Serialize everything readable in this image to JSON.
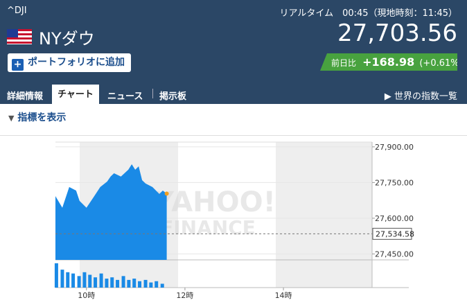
{
  "header": {
    "symbol": "^DJI",
    "name": "NYダウ",
    "realtime": "リアルタイム　00:45（現地時刻：11:45）",
    "price": "27,703.56",
    "add_button": "ポートフォリオに追加",
    "change_label": "前日比",
    "change": "+168.98",
    "change_pct": "(+0.61%)"
  },
  "tabs": [
    "詳細情報",
    "チャート",
    "ニュース",
    "掲示板"
  ],
  "world_link": "世界の指数一覧",
  "indicator_toggle": "指標を表示",
  "chart_data": {
    "type": "area",
    "watermark": [
      "YAHOO!",
      "FINANCE"
    ],
    "x": [
      9.37,
      9.51,
      9.65,
      9.79,
      9.86,
      10.0,
      10.14,
      10.28,
      10.42,
      10.49,
      10.56,
      10.7,
      10.85,
      10.92,
      10.99,
      11.06,
      11.13,
      11.2,
      11.34,
      11.48,
      11.55,
      11.63
    ],
    "values": [
      27693,
      27644,
      27731,
      27716,
      27673,
      27644,
      27687,
      27731,
      27754,
      27775,
      27789,
      27775,
      27804,
      27827,
      27804,
      27818,
      27760,
      27746,
      27731,
      27702,
      27716,
      27703.56
    ],
    "color": "#1a8ae6",
    "last_point_color": "#f0a020",
    "prev_close": {
      "value": 27534.58,
      "label": "27,534.58"
    },
    "xlim": [
      9.37,
      15.8
    ],
    "ylim": [
      27425,
      27920
    ],
    "xticks": [
      {
        "value": 10,
        "label": "10時"
      },
      {
        "value": 12,
        "label": "12時"
      },
      {
        "value": 14,
        "label": "14時"
      }
    ],
    "yticks": [
      {
        "value": 27900,
        "label": "27,900.00"
      },
      {
        "value": 27750,
        "label": "27,750.00"
      },
      {
        "value": 27600,
        "label": "27,600.00"
      },
      {
        "value": 27450,
        "label": "27,450.00"
      }
    ],
    "grid": true,
    "volume": {
      "x": [
        9.39,
        9.51,
        9.62,
        9.73,
        9.85,
        9.96,
        10.07,
        10.18,
        10.3,
        10.41,
        10.52,
        10.63,
        10.75,
        10.86,
        10.97,
        11.08,
        11.2,
        11.31,
        11.42,
        11.54
      ],
      "values": [
        95,
        70,
        60,
        55,
        45,
        60,
        50,
        40,
        55,
        35,
        40,
        30,
        45,
        30,
        35,
        25,
        30,
        20,
        25,
        15
      ],
      "ylim": [
        0,
        100
      ],
      "color": "#1a8ae6"
    }
  }
}
